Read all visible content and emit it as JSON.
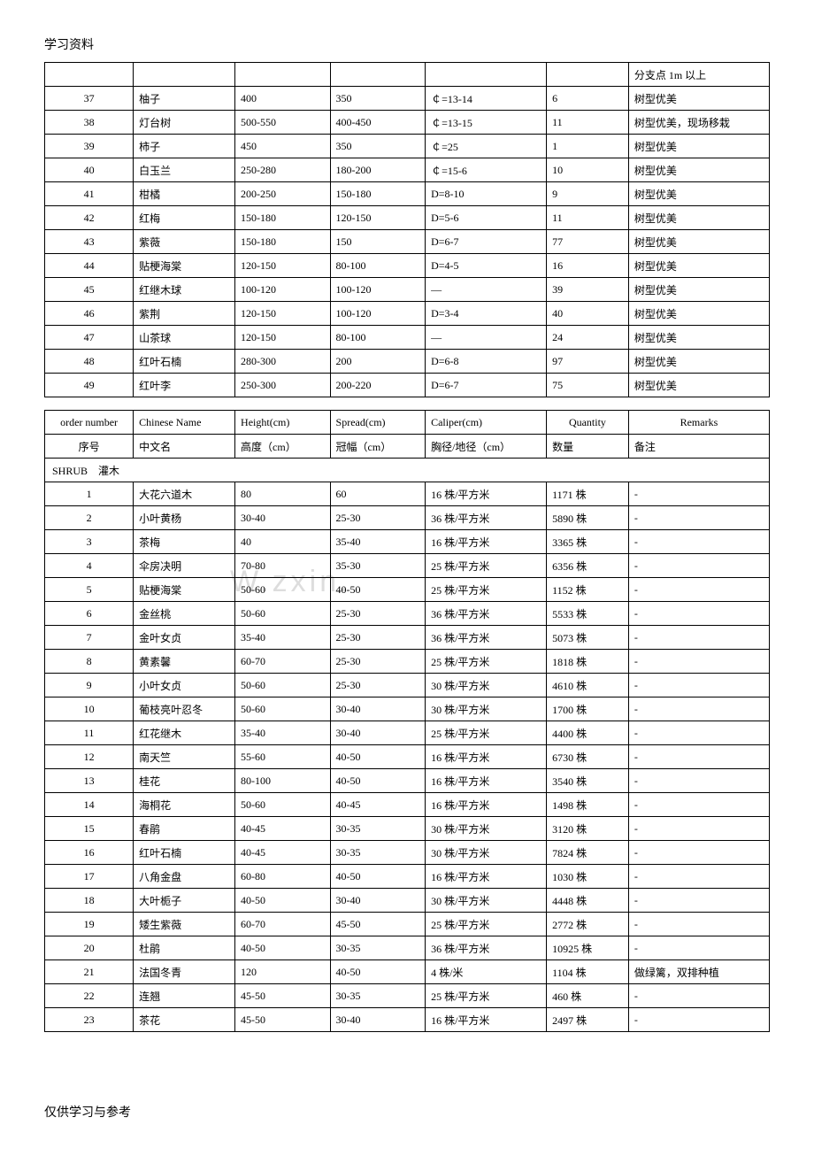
{
  "header": "学习资料",
  "footer": "仅供学习与参考",
  "watermark": "W.zxin.",
  "table1": {
    "first_remark_tail": "分支点 1m 以上",
    "rows": [
      {
        "n": "37",
        "name": "柚子",
        "h": "400",
        "s": "350",
        "c": "￠=13-14",
        "q": "6",
        "r": "树型优美"
      },
      {
        "n": "38",
        "name": "灯台树",
        "h": "500-550",
        "s": "400-450",
        "c": "￠=13-15",
        "q": "11",
        "r": "树型优美，现场移栽"
      },
      {
        "n": "39",
        "name": "柿子",
        "h": "450",
        "s": "350",
        "c": "￠=25",
        "q": "1",
        "r": "树型优美"
      },
      {
        "n": "40",
        "name": "白玉兰",
        "h": "250-280",
        "s": "180-200",
        "c": "￠=15-6",
        "q": "10",
        "r": "树型优美"
      },
      {
        "n": "41",
        "name": "柑橘",
        "h": "200-250",
        "s": "150-180",
        "c": "D=8-10",
        "q": "9",
        "r": "树型优美"
      },
      {
        "n": "42",
        "name": "红梅",
        "h": "150-180",
        "s": "120-150",
        "c": "D=5-6",
        "q": "11",
        "r": "树型优美"
      },
      {
        "n": "43",
        "name": "紫薇",
        "h": "150-180",
        "s": "150",
        "c": "D=6-7",
        "q": "77",
        "r": "树型优美"
      },
      {
        "n": "44",
        "name": "贴梗海棠",
        "h": "120-150",
        "s": "80-100",
        "c": "D=4-5",
        "q": "16",
        "r": "树型优美"
      },
      {
        "n": "45",
        "name": "红继木球",
        "h": "100-120",
        "s": "100-120",
        "c": "—",
        "q": "39",
        "r": "树型优美"
      },
      {
        "n": "46",
        "name": "紫荆",
        "h": "120-150",
        "s": "100-120",
        "c": "D=3-4",
        "q": "40",
        "r": "树型优美"
      },
      {
        "n": "47",
        "name": "山茶球",
        "h": "120-150",
        "s": "80-100",
        "c": "—",
        "q": "24",
        "r": "树型优美"
      },
      {
        "n": "48",
        "name": "红叶石楠",
        "h": "280-300",
        "s": "200",
        "c": "D=6-8",
        "q": "97",
        "r": "树型优美"
      },
      {
        "n": "49",
        "name": "红叶李",
        "h": "250-300",
        "s": "200-220",
        "c": "D=6-7",
        "q": "75",
        "r": "树型优美"
      }
    ]
  },
  "table2": {
    "head": {
      "c1a": "order number",
      "c1b": "序号",
      "c2a": "Chinese Name",
      "c2b": "中文名",
      "c3a": "Height(cm)",
      "c3b": "高度（cm）",
      "c4a": "Spread(cm)",
      "c4b": "冠幅（cm）",
      "c5a": "Caliper(cm)",
      "c5b": "胸径/地径（cm）",
      "c6a": "Quantity",
      "c6b": "数量",
      "c7a": "Remarks",
      "c7b": "备注"
    },
    "section_label": "SHRUB　灌木",
    "rows": [
      {
        "n": "1",
        "name": "大花六道木",
        "h": "80",
        "s": "60",
        "c": "16 株/平方米",
        "q": "1171 株",
        "r": "-"
      },
      {
        "n": "2",
        "name": "小叶黄杨",
        "h": "30-40",
        "s": "25-30",
        "c": "36 株/平方米",
        "q": "5890 株",
        "r": "-"
      },
      {
        "n": "3",
        "name": "茶梅",
        "h": "40",
        "s": "35-40",
        "c": "16 株/平方米",
        "q": "3365 株",
        "r": "-"
      },
      {
        "n": "4",
        "name": "伞房决明",
        "h": "70-80",
        "s": "35-30",
        "c": "25 株/平方米",
        "q": "6356 株",
        "r": "-"
      },
      {
        "n": "5",
        "name": "贴梗海棠",
        "h": "50-60",
        "s": "40-50",
        "c": "25 株/平方米",
        "q": "1152 株",
        "r": "-"
      },
      {
        "n": "6",
        "name": "金丝桃",
        "h": "50-60",
        "s": "25-30",
        "c": "36 株/平方米",
        "q": "5533 株",
        "r": "-"
      },
      {
        "n": "7",
        "name": "金叶女贞",
        "h": "35-40",
        "s": "25-30",
        "c": "36 株/平方米",
        "q": "5073 株",
        "r": "-"
      },
      {
        "n": "8",
        "name": "黄素馨",
        "h": "60-70",
        "s": "25-30",
        "c": "25 株/平方米",
        "q": "1818 株",
        "r": "-"
      },
      {
        "n": "9",
        "name": "小叶女贞",
        "h": "50-60",
        "s": "25-30",
        "c": "30 株/平方米",
        "q": "4610 株",
        "r": "-"
      },
      {
        "n": "10",
        "name": "葡枝亮叶忍冬",
        "h": "50-60",
        "s": "30-40",
        "c": "30 株/平方米",
        "q": "1700 株",
        "r": "-"
      },
      {
        "n": "11",
        "name": "红花继木",
        "h": "35-40",
        "s": "30-40",
        "c": "25 株/平方米",
        "q": "4400 株",
        "r": "-"
      },
      {
        "n": "12",
        "name": "南天竺",
        "h": "55-60",
        "s": "40-50",
        "c": "16 株/平方米",
        "q": "6730 株",
        "r": "-"
      },
      {
        "n": "13",
        "name": "桂花",
        "h": "80-100",
        "s": "40-50",
        "c": "16 株/平方米",
        "q": "3540 株",
        "r": "-"
      },
      {
        "n": "14",
        "name": "海桐花",
        "h": "50-60",
        "s": "40-45",
        "c": "16 株/平方米",
        "q": "1498 株",
        "r": "-"
      },
      {
        "n": "15",
        "name": "春鹃",
        "h": "40-45",
        "s": "30-35",
        "c": "30 株/平方米",
        "q": "3120 株",
        "r": "-"
      },
      {
        "n": "16",
        "name": "红叶石楠",
        "h": "40-45",
        "s": "30-35",
        "c": "30 株/平方米",
        "q": "7824 株",
        "r": "-"
      },
      {
        "n": "17",
        "name": "八角金盘",
        "h": "60-80",
        "s": "40-50",
        "c": "16 株/平方米",
        "q": "1030 株",
        "r": "-"
      },
      {
        "n": "18",
        "name": "大叶栀子",
        "h": "40-50",
        "s": "30-40",
        "c": "30 株/平方米",
        "q": "4448 株",
        "r": "-"
      },
      {
        "n": "19",
        "name": "矮生紫薇",
        "h": "60-70",
        "s": "45-50",
        "c": "25 株/平方米",
        "q": "2772 株",
        "r": "-"
      },
      {
        "n": "20",
        "name": "杜鹃",
        "h": "40-50",
        "s": "30-35",
        "c": "36 株/平方米",
        "q": "10925 株",
        "r": "-"
      },
      {
        "n": "21",
        "name": "法国冬青",
        "h": "120",
        "s": "40-50",
        "c": "4 株/米",
        "q": "1104 株",
        "r": "做绿篱，双排种植"
      },
      {
        "n": "22",
        "name": "连翘",
        "h": "45-50",
        "s": "30-35",
        "c": "25 株/平方米",
        "q": "460 株",
        "r": "-"
      },
      {
        "n": "23",
        "name": "茶花",
        "h": "45-50",
        "s": "30-40",
        "c": "16 株/平方米",
        "q": "2497 株",
        "r": "-"
      }
    ]
  }
}
